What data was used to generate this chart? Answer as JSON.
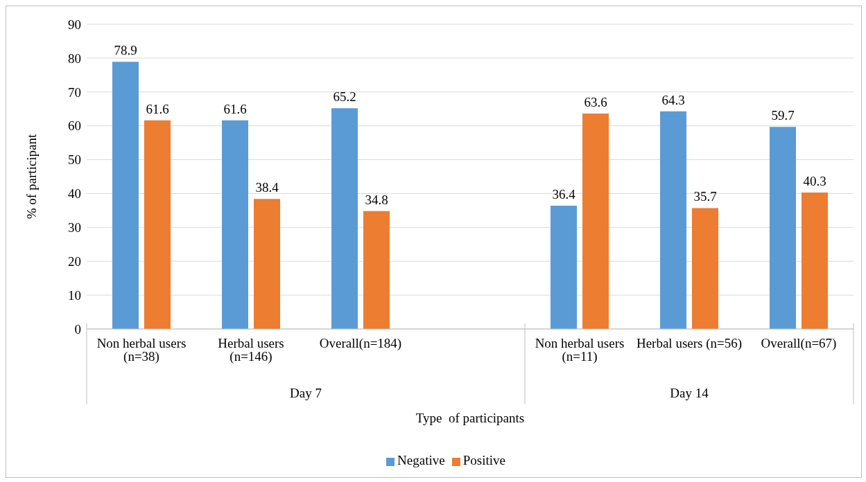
{
  "chart_data": {
    "type": "bar",
    "xlabel": "Type  of participants",
    "ylabel": "% of participant",
    "categories": [
      "Non herbal users (n=38)",
      "Herbal users (n=146)",
      "Overall(n=184)",
      null,
      "Non herbal users (n=11)",
      "Herbal users (n=56)",
      "Overall(n=67)"
    ],
    "series": [
      {
        "name": "Negative",
        "color": "#5b9bd5",
        "values": [
          78.9,
          61.6,
          65.2,
          null,
          36.4,
          64.3,
          59.7
        ]
      },
      {
        "name": "Positive",
        "color": "#ed7d31",
        "values": [
          61.6,
          38.4,
          34.8,
          null,
          63.6,
          35.7,
          40.3
        ]
      }
    ],
    "annotations": [
      "Day 7",
      "Day 14"
    ],
    "ylim": [
      0,
      90
    ],
    "yticks": [
      0,
      10,
      20,
      30,
      40,
      50,
      60,
      70,
      80,
      90
    ],
    "grid": "y",
    "legend": "bottom",
    "data_labels": true
  }
}
